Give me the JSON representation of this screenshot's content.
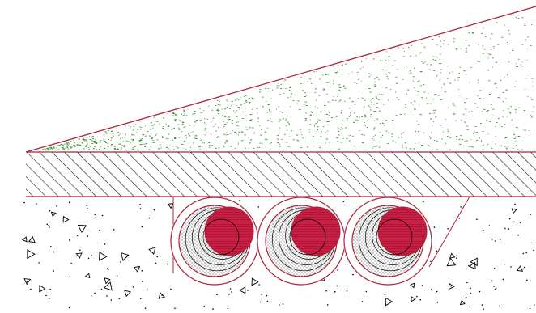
{
  "colors": {
    "outline": "#b0213a",
    "core_fill": "#cc1f45",
    "soil_dots": "#3a8a2a",
    "concrete": "#000000",
    "hatch": "#000000",
    "background": "#ffffff"
  },
  "layers": [
    {
      "name": "soil-wedge",
      "pattern": "green-dot-stipple"
    },
    {
      "name": "hatched-slab",
      "pattern": "diagonal-hatch"
    },
    {
      "name": "concrete-base",
      "pattern": "aggregate-triangles"
    }
  ],
  "pipes": {
    "count": 3,
    "pattern": "concentric-shaded-rings"
  }
}
